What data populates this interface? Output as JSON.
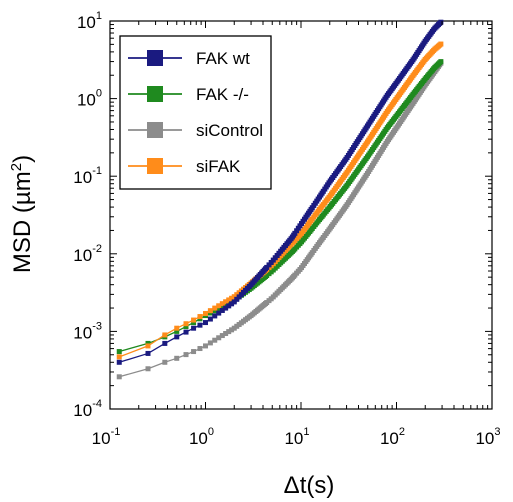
{
  "chart_data": {
    "type": "scatter",
    "title": "",
    "xlabel": "Δt(s)",
    "ylabel": {
      "main": "MSD (µm",
      "exponent": "2",
      "close": ")"
    },
    "xscale": "log",
    "yscale": "log",
    "xlim": [
      0.1,
      1000
    ],
    "ylim": [
      0.0001,
      10
    ],
    "x_ticks": [
      {
        "base": "10",
        "exp": "-1"
      },
      {
        "base": "10",
        "exp": "0"
      },
      {
        "base": "10",
        "exp": "1"
      },
      {
        "base": "10",
        "exp": "2"
      },
      {
        "base": "10",
        "exp": "3"
      }
    ],
    "y_ticks": [
      {
        "base": "10",
        "exp": "-4"
      },
      {
        "base": "10",
        "exp": "-3"
      },
      {
        "base": "10",
        "exp": "-2"
      },
      {
        "base": "10",
        "exp": "-1"
      },
      {
        "base": "10",
        "exp": "0"
      },
      {
        "base": "10",
        "exp": "1"
      }
    ],
    "grid": false,
    "legend_position": "top-left",
    "series": [
      {
        "name": "FAK wt",
        "color": "#1a1a80",
        "x": [
          0.125,
          0.25,
          0.375,
          0.5,
          0.75,
          1,
          2,
          3,
          5,
          8,
          10,
          15,
          20,
          30,
          50,
          80,
          100,
          150,
          200,
          250,
          300
        ],
        "y": [
          0.0004,
          0.00052,
          0.0007,
          0.00085,
          0.0011,
          0.0013,
          0.0024,
          0.004,
          0.008,
          0.016,
          0.024,
          0.05,
          0.085,
          0.17,
          0.45,
          1.1,
          1.6,
          3.2,
          5.5,
          8,
          10
        ]
      },
      {
        "name": "FAK -/-",
        "color": "#1f8a1f",
        "x": [
          0.125,
          0.25,
          0.375,
          0.5,
          0.75,
          1,
          2,
          3,
          5,
          8,
          10,
          15,
          20,
          30,
          50,
          80,
          100,
          150,
          200,
          250,
          300
        ],
        "y": [
          0.00055,
          0.0007,
          0.00085,
          0.001,
          0.0013,
          0.0016,
          0.0025,
          0.0036,
          0.006,
          0.0105,
          0.014,
          0.026,
          0.04,
          0.075,
          0.18,
          0.42,
          0.6,
          1.15,
          1.8,
          2.5,
          3.1
        ]
      },
      {
        "name": "siControl",
        "color": "#8c8c8c",
        "x": [
          0.125,
          0.25,
          0.375,
          0.5,
          0.75,
          1,
          2,
          3,
          5,
          8,
          10,
          15,
          20,
          30,
          50,
          80,
          100,
          150,
          200,
          250,
          300
        ],
        "y": [
          0.00026,
          0.00033,
          0.0004,
          0.00045,
          0.00055,
          0.00065,
          0.0011,
          0.0016,
          0.0027,
          0.0048,
          0.0065,
          0.013,
          0.021,
          0.042,
          0.11,
          0.28,
          0.42,
          0.88,
          1.5,
          2.2,
          3.0
        ]
      },
      {
        "name": "siFAK",
        "color": "#ff8c1a",
        "x": [
          0.125,
          0.25,
          0.375,
          0.5,
          0.75,
          1,
          2,
          3,
          5,
          8,
          10,
          15,
          20,
          30,
          50,
          80,
          100,
          150,
          200,
          250,
          300
        ],
        "y": [
          0.00047,
          0.00065,
          0.0009,
          0.0011,
          0.0014,
          0.0017,
          0.0028,
          0.0042,
          0.0072,
          0.0135,
          0.018,
          0.035,
          0.055,
          0.11,
          0.28,
          0.68,
          1.0,
          2.0,
          3.2,
          4.3,
          5.2
        ]
      }
    ]
  }
}
